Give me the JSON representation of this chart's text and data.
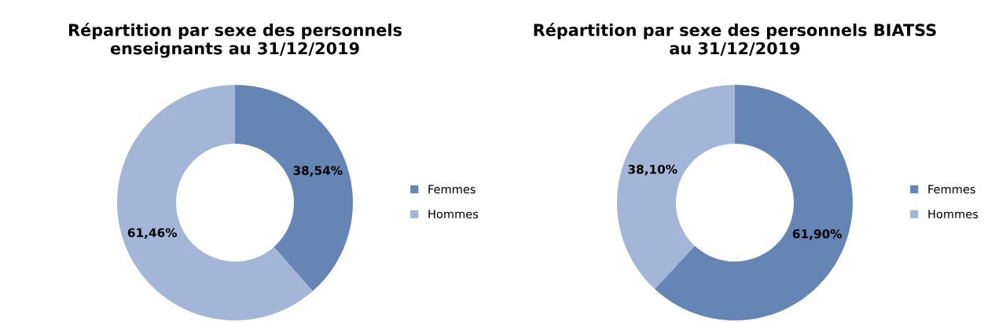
{
  "chart_data": [
    {
      "type": "donut",
      "title": "Répartition par sexe des personnels\nenseignants au 31/12/2019",
      "categories": [
        "Femmes",
        "Hommes"
      ],
      "values": [
        38.54,
        61.46
      ],
      "colors": [
        "#6585b4",
        "#a3b6d8"
      ],
      "value_labels": [
        "38,54%",
        "61,46%"
      ],
      "legend": "right"
    },
    {
      "type": "donut",
      "title": "Répartition par sexe des personnels BIATSS\nau 31/12/2019",
      "categories": [
        "Femmes",
        "Hommes"
      ],
      "values": [
        61.9,
        38.1
      ],
      "colors": [
        "#6585b4",
        "#a3b6d8"
      ],
      "value_labels": [
        "61,90%",
        "38,10%"
      ],
      "legend": "right"
    }
  ]
}
